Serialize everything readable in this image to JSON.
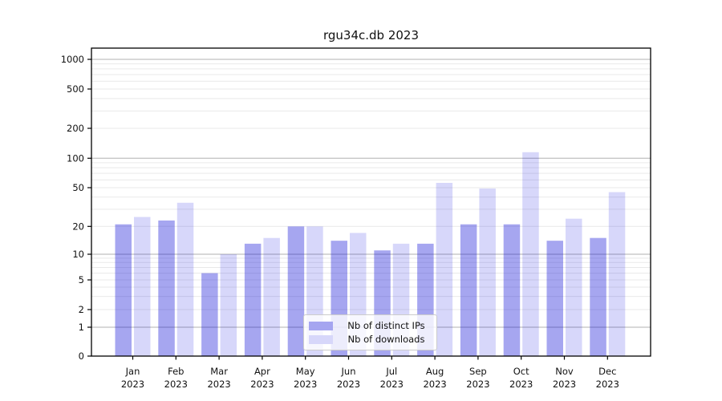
{
  "title": "rgu34c.db 2023",
  "colors": {
    "ips_bar": "rgba(13,13,215,0.37)",
    "downloads_bar": "rgba(8,8,224,0.16)",
    "ips_swatch": "#a5a5f0",
    "downloads_swatch": "#d7d7fa",
    "grid_major": "#b0b0b0",
    "grid_minor": "#e9e9e9",
    "axis": "#000000",
    "text": "#111111"
  },
  "chart_data": {
    "type": "bar",
    "title": "rgu34c.db 2023",
    "months": [
      "Jan",
      "Feb",
      "Mar",
      "Apr",
      "May",
      "Jun",
      "Jul",
      "Aug",
      "Sep",
      "Oct",
      "Nov",
      "Dec"
    ],
    "year": "2023",
    "categories": [
      "Jan 2023",
      "Feb 2023",
      "Mar 2023",
      "Apr 2023",
      "May 2023",
      "Jun 2023",
      "Jul 2023",
      "Aug 2023",
      "Sep 2023",
      "Oct 2023",
      "Nov 2023",
      "Dec 2023"
    ],
    "series": [
      {
        "name": "Nb of distinct IPs",
        "values": [
          21,
          23,
          6,
          13,
          20,
          14,
          11,
          13,
          21,
          21,
          14,
          15
        ]
      },
      {
        "name": "Nb of downloads",
        "values": [
          25,
          35,
          10,
          15,
          20,
          17,
          13,
          56,
          49,
          115,
          24,
          45
        ]
      }
    ],
    "yscale": "symlog",
    "y_ticks": [
      0,
      1,
      2,
      5,
      10,
      20,
      50,
      100,
      200,
      500,
      1000
    ],
    "ylim": [
      0,
      1300
    ],
    "grid": true,
    "legend_position": "lower center"
  }
}
